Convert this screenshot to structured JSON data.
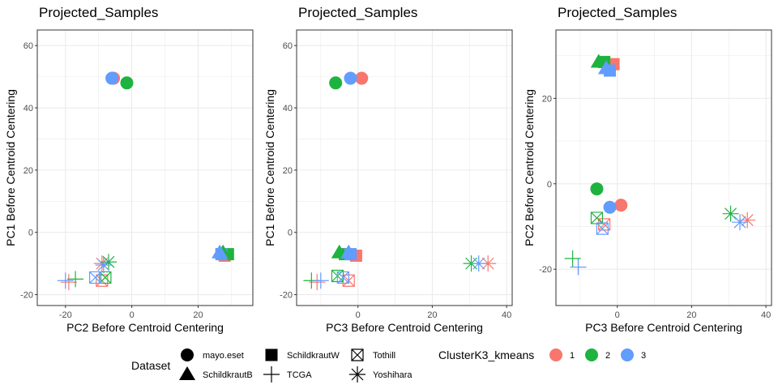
{
  "chart_data": [
    {
      "type": "scatter",
      "title": "Projected_Samples",
      "xlabel": "PC2 Before Centroid Centering",
      "ylabel": "PC1 Before Centroid Centering",
      "xlim": [
        -28.5,
        36.5
      ],
      "ylim": [
        -23.5,
        65
      ],
      "xticks": [
        -20,
        0,
        20
      ],
      "yticks": [
        -20,
        0,
        20,
        40,
        60
      ],
      "grid": true,
      "points": [
        {
          "x": -5.5,
          "y": 49.5,
          "dataset": "mayo.eset",
          "cluster": "1"
        },
        {
          "x": -1.5,
          "y": 48.0,
          "dataset": "mayo.eset",
          "cluster": "2"
        },
        {
          "x": -6.0,
          "y": 49.5,
          "dataset": "mayo.eset",
          "cluster": "3"
        },
        {
          "x": 28.0,
          "y": -7.5,
          "dataset": "SchildkrautW",
          "cluster": "1"
        },
        {
          "x": 29.0,
          "y": -7.0,
          "dataset": "SchildkrautW",
          "cluster": "2"
        },
        {
          "x": 27.0,
          "y": -7.0,
          "dataset": "SchildkrautW",
          "cluster": "3"
        },
        {
          "x": 27.5,
          "y": -6.5,
          "dataset": "SchildkrautB",
          "cluster": "2"
        },
        {
          "x": 26.5,
          "y": -6.5,
          "dataset": "SchildkrautB",
          "cluster": "3"
        },
        {
          "x": -19.0,
          "y": -16.0,
          "dataset": "TCGA",
          "cluster": "1"
        },
        {
          "x": -17.0,
          "y": -15.0,
          "dataset": "TCGA",
          "cluster": "2"
        },
        {
          "x": -20.0,
          "y": -15.5,
          "dataset": "TCGA",
          "cluster": "3"
        },
        {
          "x": -9.0,
          "y": -15.5,
          "dataset": "Tothill",
          "cluster": "1"
        },
        {
          "x": -8.0,
          "y": -14.5,
          "dataset": "Tothill",
          "cluster": "2"
        },
        {
          "x": -11.0,
          "y": -14.5,
          "dataset": "Tothill",
          "cluster": "3"
        },
        {
          "x": -9.0,
          "y": -10.0,
          "dataset": "Yoshihara",
          "cluster": "1"
        },
        {
          "x": -7.0,
          "y": -9.5,
          "dataset": "Yoshihara",
          "cluster": "2"
        },
        {
          "x": -8.5,
          "y": -10.5,
          "dataset": "Yoshihara",
          "cluster": "3"
        }
      ]
    },
    {
      "type": "scatter",
      "title": "Projected_Samples",
      "xlabel": "PC3 Before Centroid Centering",
      "ylabel": "PC1 Before Centroid Centering",
      "xlim": [
        -16.5,
        41.5
      ],
      "ylim": [
        -23.5,
        65
      ],
      "xticks": [
        0,
        20,
        40
      ],
      "yticks": [
        -20,
        0,
        20,
        40,
        60
      ],
      "grid": true,
      "points": [
        {
          "x": 1.0,
          "y": 49.5,
          "dataset": "mayo.eset",
          "cluster": "1"
        },
        {
          "x": -6.0,
          "y": 48.0,
          "dataset": "mayo.eset",
          "cluster": "2"
        },
        {
          "x": -2.0,
          "y": 49.5,
          "dataset": "mayo.eset",
          "cluster": "3"
        },
        {
          "x": -0.5,
          "y": -7.5,
          "dataset": "SchildkrautW",
          "cluster": "1"
        },
        {
          "x": -3.5,
          "y": -7.0,
          "dataset": "SchildkrautW",
          "cluster": "2"
        },
        {
          "x": -2.0,
          "y": -7.0,
          "dataset": "SchildkrautW",
          "cluster": "3"
        },
        {
          "x": -5.0,
          "y": -6.5,
          "dataset": "SchildkrautB",
          "cluster": "2"
        },
        {
          "x": -2.5,
          "y": -6.5,
          "dataset": "SchildkrautB",
          "cluster": "3"
        },
        {
          "x": -11.0,
          "y": -16.0,
          "dataset": "TCGA",
          "cluster": "1"
        },
        {
          "x": -12.5,
          "y": -15.5,
          "dataset": "TCGA",
          "cluster": "2"
        },
        {
          "x": -10.0,
          "y": -15.5,
          "dataset": "TCGA",
          "cluster": "3"
        },
        {
          "x": -2.5,
          "y": -15.5,
          "dataset": "Tothill",
          "cluster": "1"
        },
        {
          "x": -5.5,
          "y": -14.0,
          "dataset": "Tothill",
          "cluster": "2"
        },
        {
          "x": -4.0,
          "y": -14.5,
          "dataset": "Tothill",
          "cluster": "3"
        },
        {
          "x": 35.0,
          "y": -10.0,
          "dataset": "Yoshihara",
          "cluster": "1"
        },
        {
          "x": 30.5,
          "y": -10.0,
          "dataset": "Yoshihara",
          "cluster": "2"
        },
        {
          "x": 32.5,
          "y": -10.0,
          "dataset": "Yoshihara",
          "cluster": "3"
        }
      ]
    },
    {
      "type": "scatter",
      "title": "Projected_Samples",
      "xlabel": "PC3 Before Centroid Centering",
      "ylabel": "PC2 Before Centroid Centering",
      "xlim": [
        -16.5,
        41.5
      ],
      "ylim": [
        -28.5,
        36
      ],
      "xticks": [
        0,
        20,
        40
      ],
      "yticks": [
        -20,
        0,
        20
      ],
      "grid": true,
      "points": [
        {
          "x": 1.0,
          "y": -5.0,
          "dataset": "mayo.eset",
          "cluster": "1"
        },
        {
          "x": -5.5,
          "y": -1.2,
          "dataset": "mayo.eset",
          "cluster": "2"
        },
        {
          "x": -2.0,
          "y": -5.5,
          "dataset": "mayo.eset",
          "cluster": "3"
        },
        {
          "x": -1.0,
          "y": 28.0,
          "dataset": "SchildkrautW",
          "cluster": "1"
        },
        {
          "x": -3.5,
          "y": 28.5,
          "dataset": "SchildkrautW",
          "cluster": "2"
        },
        {
          "x": -2.0,
          "y": 26.5,
          "dataset": "SchildkrautW",
          "cluster": "3"
        },
        {
          "x": -5.0,
          "y": 28.5,
          "dataset": "SchildkrautB",
          "cluster": "2"
        },
        {
          "x": -3.0,
          "y": 27.0,
          "dataset": "SchildkrautB",
          "cluster": "3"
        },
        {
          "x": -10.5,
          "y": -19.5,
          "dataset": "TCGA",
          "cluster": "1"
        },
        {
          "x": -12.0,
          "y": -17.5,
          "dataset": "TCGA",
          "cluster": "2"
        },
        {
          "x": -10.5,
          "y": -19.5,
          "dataset": "TCGA",
          "cluster": "3"
        },
        {
          "x": -3.5,
          "y": -9.5,
          "dataset": "Tothill",
          "cluster": "1"
        },
        {
          "x": -5.5,
          "y": -8.0,
          "dataset": "Tothill",
          "cluster": "2"
        },
        {
          "x": -4.0,
          "y": -10.5,
          "dataset": "Tothill",
          "cluster": "3"
        },
        {
          "x": 35.0,
          "y": -8.5,
          "dataset": "Yoshihara",
          "cluster": "1"
        },
        {
          "x": 30.5,
          "y": -7.0,
          "dataset": "Yoshihara",
          "cluster": "2"
        },
        {
          "x": 33.0,
          "y": -9.0,
          "dataset": "Yoshihara",
          "cluster": "3"
        }
      ]
    }
  ],
  "legend": {
    "position": "bottom",
    "dataset": {
      "title": "Dataset",
      "items": [
        {
          "label": "mayo.eset",
          "shape": "circle"
        },
        {
          "label": "SchildkrautB",
          "shape": "triangle"
        },
        {
          "label": "SchildkrautW",
          "shape": "square"
        },
        {
          "label": "TCGA",
          "shape": "plus"
        },
        {
          "label": "Tothill",
          "shape": "square-x"
        },
        {
          "label": "Yoshihara",
          "shape": "asterisk"
        }
      ]
    },
    "cluster": {
      "title": "ClusterK3_kmeans",
      "items": [
        {
          "label": "1",
          "color": "#F8766D"
        },
        {
          "label": "2",
          "color": "#1EB33F"
        },
        {
          "label": "3",
          "color": "#619CFF"
        }
      ]
    }
  }
}
